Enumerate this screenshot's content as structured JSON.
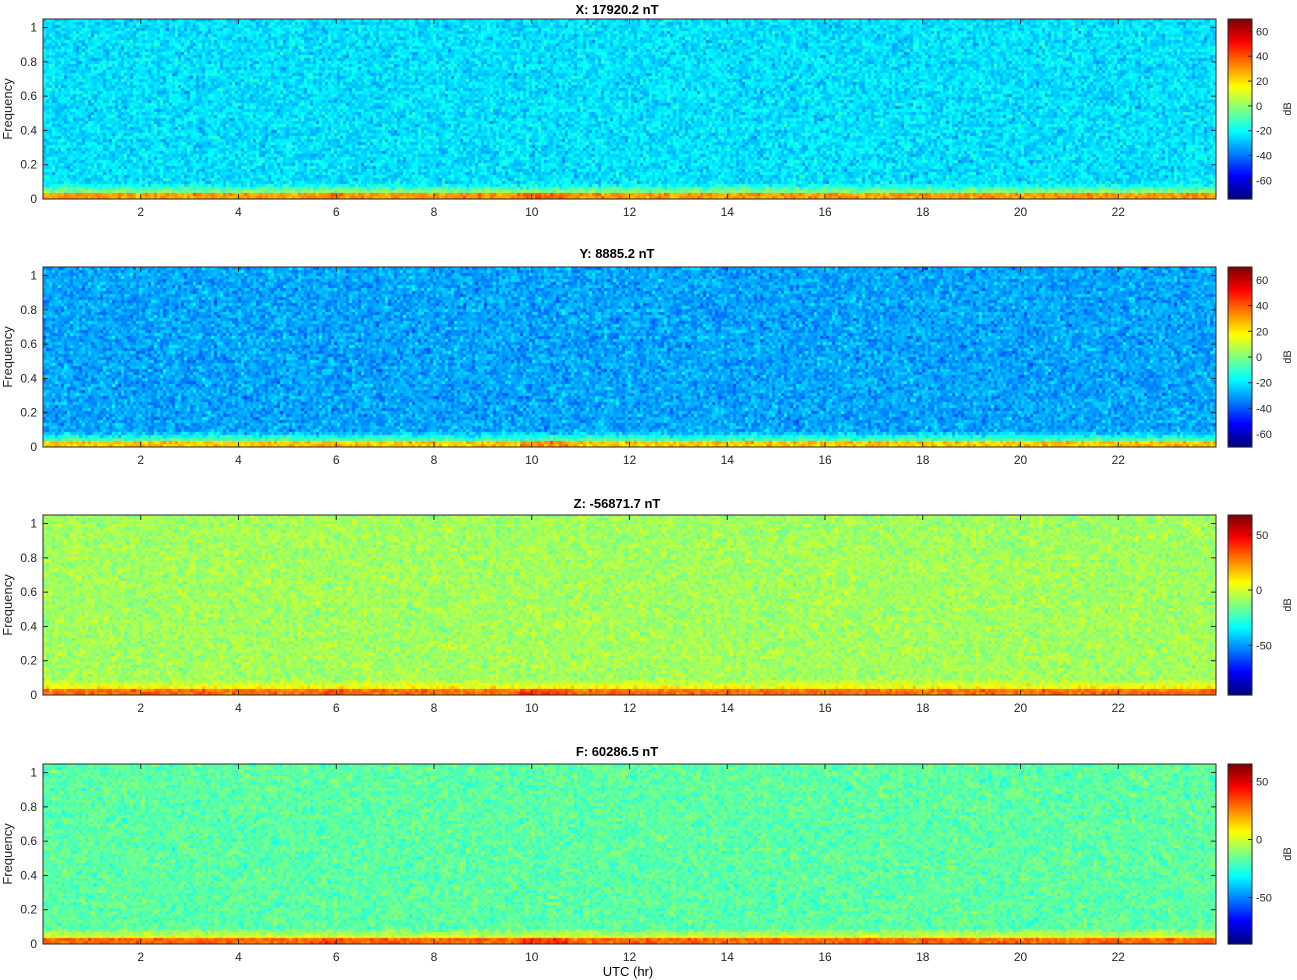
{
  "chart_data": [
    {
      "type": "heatmap",
      "title": "X: 17920.2 nT",
      "xlabel": "",
      "ylabel": "Frequency",
      "xlim": [
        0,
        24
      ],
      "ylim": [
        0,
        1.05
      ],
      "x_ticks": [
        "2",
        "4",
        "6",
        "8",
        "10",
        "12",
        "14",
        "16",
        "18",
        "20",
        "22"
      ],
      "y_ticks": [
        "0",
        "0.2",
        "0.4",
        "0.6",
        "0.8",
        "1"
      ],
      "colorbar": {
        "label": "dB",
        "range": [
          -75,
          70
        ],
        "ticks": [
          "60",
          "40",
          "20",
          "0",
          "-20",
          "-40",
          "-60"
        ]
      },
      "background_db": -25,
      "low_band_db": 30,
      "dc_db": 70
    },
    {
      "type": "heatmap",
      "title": "Y: 8885.2 nT",
      "xlabel": "",
      "ylabel": "Frequency",
      "xlim": [
        0,
        24
      ],
      "ylim": [
        0,
        1.05
      ],
      "x_ticks": [
        "2",
        "4",
        "6",
        "8",
        "10",
        "12",
        "14",
        "16",
        "18",
        "20",
        "22"
      ],
      "y_ticks": [
        "0",
        "0.2",
        "0.4",
        "0.6",
        "0.8",
        "1"
      ],
      "colorbar": {
        "label": "dB",
        "range": [
          -70,
          70
        ],
        "ticks": [
          "60",
          "40",
          "20",
          "0",
          "-20",
          "-40",
          "-60"
        ]
      },
      "background_db": -30,
      "low_band_db": 25,
      "dc_db": 68
    },
    {
      "type": "heatmap",
      "title": "Z: -56871.7 nT",
      "xlabel": "",
      "ylabel": "Frequency",
      "xlim": [
        0,
        24
      ],
      "ylim": [
        0,
        1.05
      ],
      "x_ticks": [
        "2",
        "4",
        "6",
        "8",
        "10",
        "12",
        "14",
        "16",
        "18",
        "20",
        "22"
      ],
      "y_ticks": [
        "0",
        "0.2",
        "0.4",
        "0.6",
        "0.8",
        "1"
      ],
      "colorbar": {
        "label": "dB",
        "range": [
          -95,
          68
        ],
        "ticks": [
          "50",
          "0",
          "-50"
        ]
      },
      "background_db": -8,
      "low_band_db": 30,
      "dc_db": 66
    },
    {
      "type": "heatmap",
      "title": "F: 60286.5 nT",
      "xlabel": "UTC (hr)",
      "ylabel": "Frequency",
      "xlim": [
        0,
        24
      ],
      "ylim": [
        0,
        1.05
      ],
      "x_ticks": [
        "2",
        "4",
        "6",
        "8",
        "10",
        "12",
        "14",
        "16",
        "18",
        "20",
        "22"
      ],
      "y_ticks": [
        "0",
        "0.2",
        "0.4",
        "0.6",
        "0.8",
        "1"
      ],
      "colorbar": {
        "label": "dB",
        "range": [
          -90,
          65
        ],
        "ticks": [
          "50",
          "0",
          "-50"
        ]
      },
      "background_db": -18,
      "low_band_db": 30,
      "dc_db": 64
    }
  ]
}
